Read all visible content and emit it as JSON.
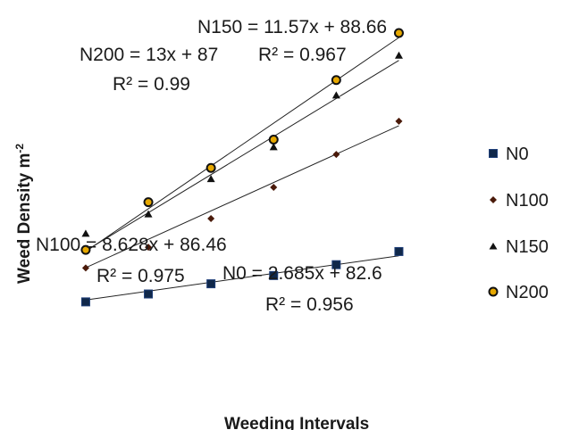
{
  "chart_data": {
    "type": "scatter",
    "xlabel": "Weeding Intervals",
    "ylabel_base": "Weed Density m",
    "ylabel_sup": "-2",
    "x": [
      1,
      2,
      3,
      4,
      5,
      6
    ],
    "ylim": [
      68,
      171
    ],
    "xlim": [
      0.63,
      7.62
    ],
    "series": [
      {
        "name": "N0",
        "marker": "square",
        "color": "#10284a",
        "values": [
          84.7,
          87.1,
          90.2,
          92.7,
          96.0,
          100.0
        ],
        "trendline": {
          "slope": 2.685,
          "intercept": 82.6
        },
        "equation": "N0 = 2.685x + 82.6",
        "r2": "R² = 0.956"
      },
      {
        "name": "N100",
        "marker": "diamond",
        "color": "#4a1a0a",
        "values": [
          95.0,
          101.3,
          110.0,
          119.5,
          129.5,
          139.6
        ],
        "trendline": {
          "slope": 8.628,
          "intercept": 86.46
        },
        "equation": "N100 = 8.628x + 86.46",
        "r2": "R² = 0.975"
      },
      {
        "name": "N150",
        "marker": "triangle",
        "color": "#111111",
        "values": [
          105.3,
          111.2,
          121.9,
          131.6,
          147.3,
          159.4
        ],
        "trendline": {
          "slope": 11.57,
          "intercept": 88.66
        },
        "equation": "N150 = 11.57x + 88.66",
        "r2": "R² = 0.967"
      },
      {
        "name": "N200",
        "marker": "circle",
        "color": "#111111",
        "fill": "#e6a800",
        "values": [
          100.5,
          115.0,
          125.4,
          134.0,
          152.1,
          166.4
        ],
        "trendline": {
          "slope": 13,
          "intercept": 87
        },
        "equation": "N200 = 13x + 87",
        "r2": "R² = 0.99"
      }
    ],
    "grid": false,
    "legend_position": "right"
  }
}
